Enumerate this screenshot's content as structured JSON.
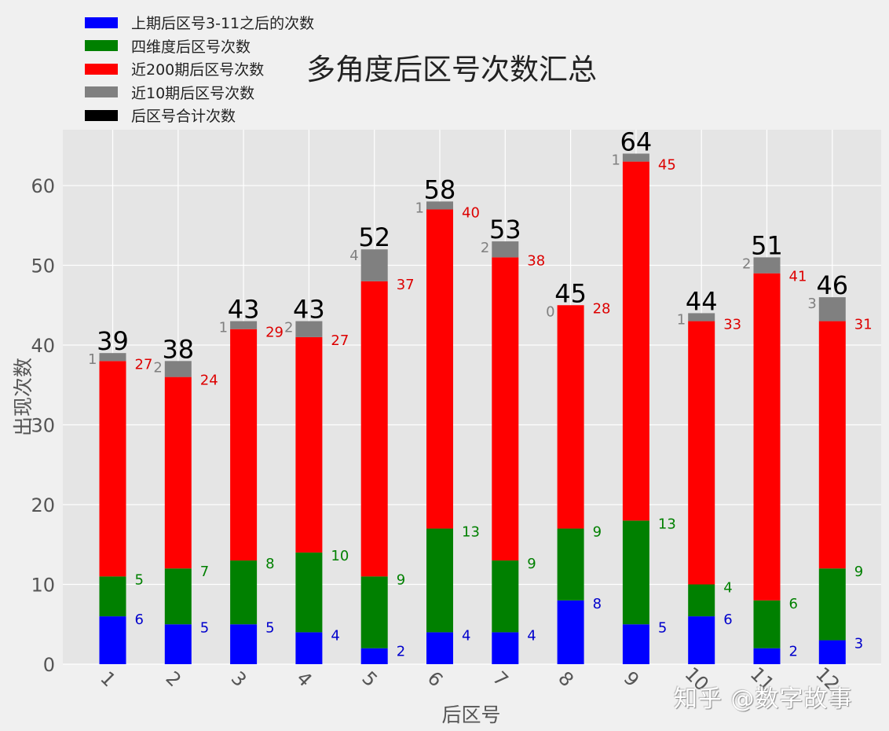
{
  "chart_data": {
    "type": "bar",
    "stacked": true,
    "title": "多角度后区号次数汇总",
    "xlabel": "后区号",
    "ylabel": "出现次数",
    "categories": [
      "1",
      "2",
      "3",
      "4",
      "5",
      "6",
      "7",
      "8",
      "9",
      "10",
      "11",
      "12"
    ],
    "series": [
      {
        "name": "上期后区号3-11之后的次数",
        "color": "#0000ff",
        "label_color": "#0000cc",
        "values": [
          6,
          5,
          5,
          4,
          2,
          4,
          4,
          8,
          5,
          6,
          2,
          3
        ]
      },
      {
        "name": "四维度后区号次数",
        "color": "#008000",
        "label_color": "#008000",
        "values": [
          5,
          7,
          8,
          10,
          9,
          13,
          9,
          9,
          13,
          4,
          6,
          9
        ]
      },
      {
        "name": "近200期后区号次数",
        "color": "#ff0000",
        "label_color": "#dd0000",
        "values": [
          27,
          24,
          29,
          27,
          37,
          40,
          38,
          28,
          45,
          33,
          41,
          31
        ]
      },
      {
        "name": "近10期后区号次数",
        "color": "#808080",
        "label_color": "#808080",
        "values": [
          1,
          2,
          1,
          2,
          4,
          1,
          2,
          0,
          1,
          1,
          2,
          3
        ]
      },
      {
        "name": "后区号合计次数",
        "color": "#000000",
        "label_color": "#000000",
        "values": [
          39,
          38,
          43,
          43,
          52,
          58,
          53,
          45,
          64,
          44,
          51,
          46
        ]
      }
    ],
    "yticks": [
      0,
      10,
      20,
      30,
      40,
      50,
      60
    ],
    "ylim": [
      0,
      67
    ],
    "grid": true,
    "legend_position": "upper left (outside plot, above)",
    "xtick_rotation": 45
  },
  "watermark": "知乎 @数字故事",
  "colors": {
    "figure_bg": "#f0f0f0",
    "plot_bg": "#e5e5e5",
    "grid": "#ffffff",
    "tick_text": "#555555"
  }
}
